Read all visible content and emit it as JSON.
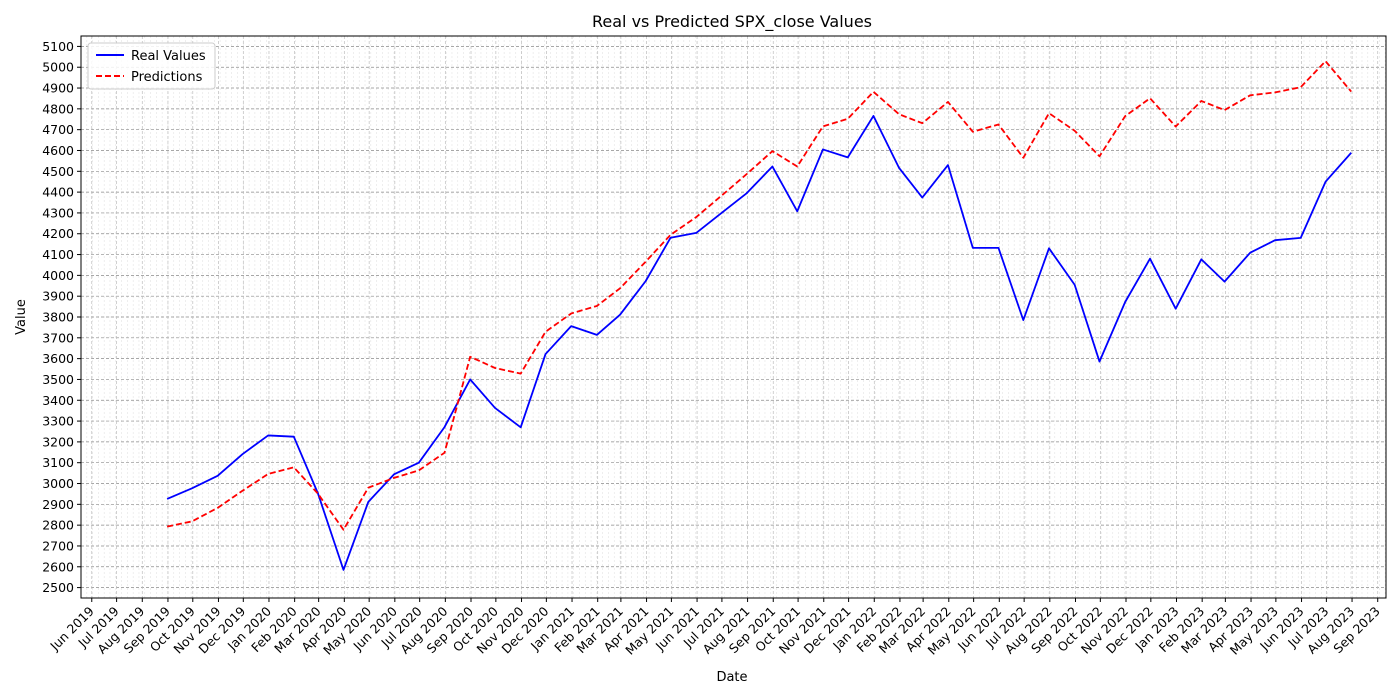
{
  "chart_data": {
    "type": "line",
    "title": "Real vs Predicted SPX_close Values",
    "xlabel": "Date",
    "ylabel": "Value",
    "x": [
      "2019-08-31",
      "2019-09-30",
      "2019-10-31",
      "2019-11-30",
      "2019-12-31",
      "2020-01-31",
      "2020-02-29",
      "2020-03-31",
      "2020-04-30",
      "2020-05-31",
      "2020-06-30",
      "2020-07-31",
      "2020-08-31",
      "2020-09-30",
      "2020-10-31",
      "2020-11-30",
      "2020-12-31",
      "2021-01-31",
      "2021-02-28",
      "2021-03-31",
      "2021-04-30",
      "2021-05-31",
      "2021-06-30",
      "2021-07-31",
      "2021-08-31",
      "2021-09-30",
      "2021-10-31",
      "2021-11-30",
      "2021-12-31",
      "2022-01-31",
      "2022-02-28",
      "2022-03-31",
      "2022-04-30",
      "2022-05-31",
      "2022-06-30",
      "2022-07-31",
      "2022-08-31",
      "2022-09-30",
      "2022-10-31",
      "2022-11-30",
      "2022-12-31",
      "2023-01-31",
      "2023-02-28",
      "2023-03-31",
      "2023-04-30",
      "2023-05-31",
      "2023-06-30",
      "2023-07-31"
    ],
    "series": [
      {
        "name": "Real Values",
        "color": "#0000ff",
        "style": "solid",
        "values": [
          2926,
          2977,
          3037,
          3141,
          3231,
          3225,
          2954,
          2585,
          2912,
          3044,
          3100,
          3271,
          3500,
          3363,
          3270,
          3622,
          3756,
          3714,
          3811,
          3973,
          4181,
          4204,
          4298,
          4395,
          4523,
          4308,
          4605,
          4567,
          4766,
          4516,
          4374,
          4530,
          4132,
          4132,
          3785,
          4130,
          3955,
          3586,
          3872,
          4080,
          3840,
          4077,
          3970,
          4109,
          4169,
          4180,
          4450,
          4589
        ]
      },
      {
        "name": "Predictions",
        "color": "#ff0000",
        "style": "dashed",
        "values": [
          2793,
          2818,
          2883,
          2965,
          3046,
          3078,
          2952,
          2778,
          2980,
          3027,
          3063,
          3148,
          3609,
          3555,
          3528,
          3729,
          3817,
          3853,
          3938,
          4066,
          4195,
          4280,
          4381,
          4487,
          4597,
          4523,
          4716,
          4752,
          4882,
          4774,
          4731,
          4833,
          4690,
          4725,
          4565,
          4779,
          4695,
          4572,
          4765,
          4851,
          4715,
          4838,
          4794,
          4865,
          4879,
          4904,
          5029,
          4883
        ]
      }
    ],
    "ylim": [
      2450,
      5150
    ],
    "yticks": [
      2500,
      2600,
      2700,
      2800,
      2900,
      3000,
      3100,
      3200,
      3300,
      3400,
      3500,
      3600,
      3700,
      3800,
      3900,
      4000,
      4100,
      4200,
      4300,
      4400,
      4500,
      4600,
      4700,
      4800,
      4900,
      5000,
      5100
    ],
    "xticks": [
      "2019-06-01",
      "2019-07-01",
      "2019-08-01",
      "2019-09-01",
      "2019-10-01",
      "2019-11-01",
      "2019-12-01",
      "2020-01-01",
      "2020-02-01",
      "2020-03-01",
      "2020-04-01",
      "2020-05-01",
      "2020-06-01",
      "2020-07-01",
      "2020-08-01",
      "2020-09-01",
      "2020-10-01",
      "2020-11-01",
      "2020-12-01",
      "2021-01-01",
      "2021-02-01",
      "2021-03-01",
      "2021-04-01",
      "2021-05-01",
      "2021-06-01",
      "2021-07-01",
      "2021-08-01",
      "2021-09-01",
      "2021-10-01",
      "2021-11-01",
      "2021-12-01",
      "2022-01-01",
      "2022-02-01",
      "2022-03-01",
      "2022-04-01",
      "2022-05-01",
      "2022-06-01",
      "2022-07-01",
      "2022-08-01",
      "2022-09-01",
      "2022-10-01",
      "2022-11-01",
      "2022-12-01",
      "2023-01-01",
      "2023-02-01",
      "2023-03-01",
      "2023-04-01",
      "2023-05-01",
      "2023-06-01",
      "2023-07-01",
      "2023-08-01",
      "2023-09-01"
    ],
    "xtick_labels": [
      "Jun 2019",
      "Jul 2019",
      "Aug 2019",
      "Sep 2019",
      "Oct 2019",
      "Nov 2019",
      "Dec 2019",
      "Jan 2020",
      "Feb 2020",
      "Mar 2020",
      "Apr 2020",
      "May 2020",
      "Jun 2020",
      "Jul 2020",
      "Aug 2020",
      "Sep 2020",
      "Oct 2020",
      "Nov 2020",
      "Dec 2020",
      "Jan 2021",
      "Feb 2021",
      "Mar 2021",
      "Apr 2021",
      "May 2021",
      "Jun 2021",
      "Jul 2021",
      "Aug 2021",
      "Sep 2021",
      "Oct 2021",
      "Nov 2021",
      "Dec 2021",
      "Jan 2022",
      "Feb 2022",
      "Mar 2022",
      "Apr 2022",
      "May 2022",
      "Jun 2022",
      "Jul 2022",
      "Aug 2022",
      "Sep 2022",
      "Oct 2022",
      "Nov 2022",
      "Dec 2022",
      "Jan 2023",
      "Feb 2023",
      "Mar 2023",
      "Apr 2023",
      "May 2023",
      "Jun 2023",
      "Jul 2023",
      "Aug 2023",
      "Sep 2023"
    ],
    "xlim": [
      "2019-05-19",
      "2023-09-11"
    ],
    "grid": true,
    "legend": "upper-left"
  }
}
